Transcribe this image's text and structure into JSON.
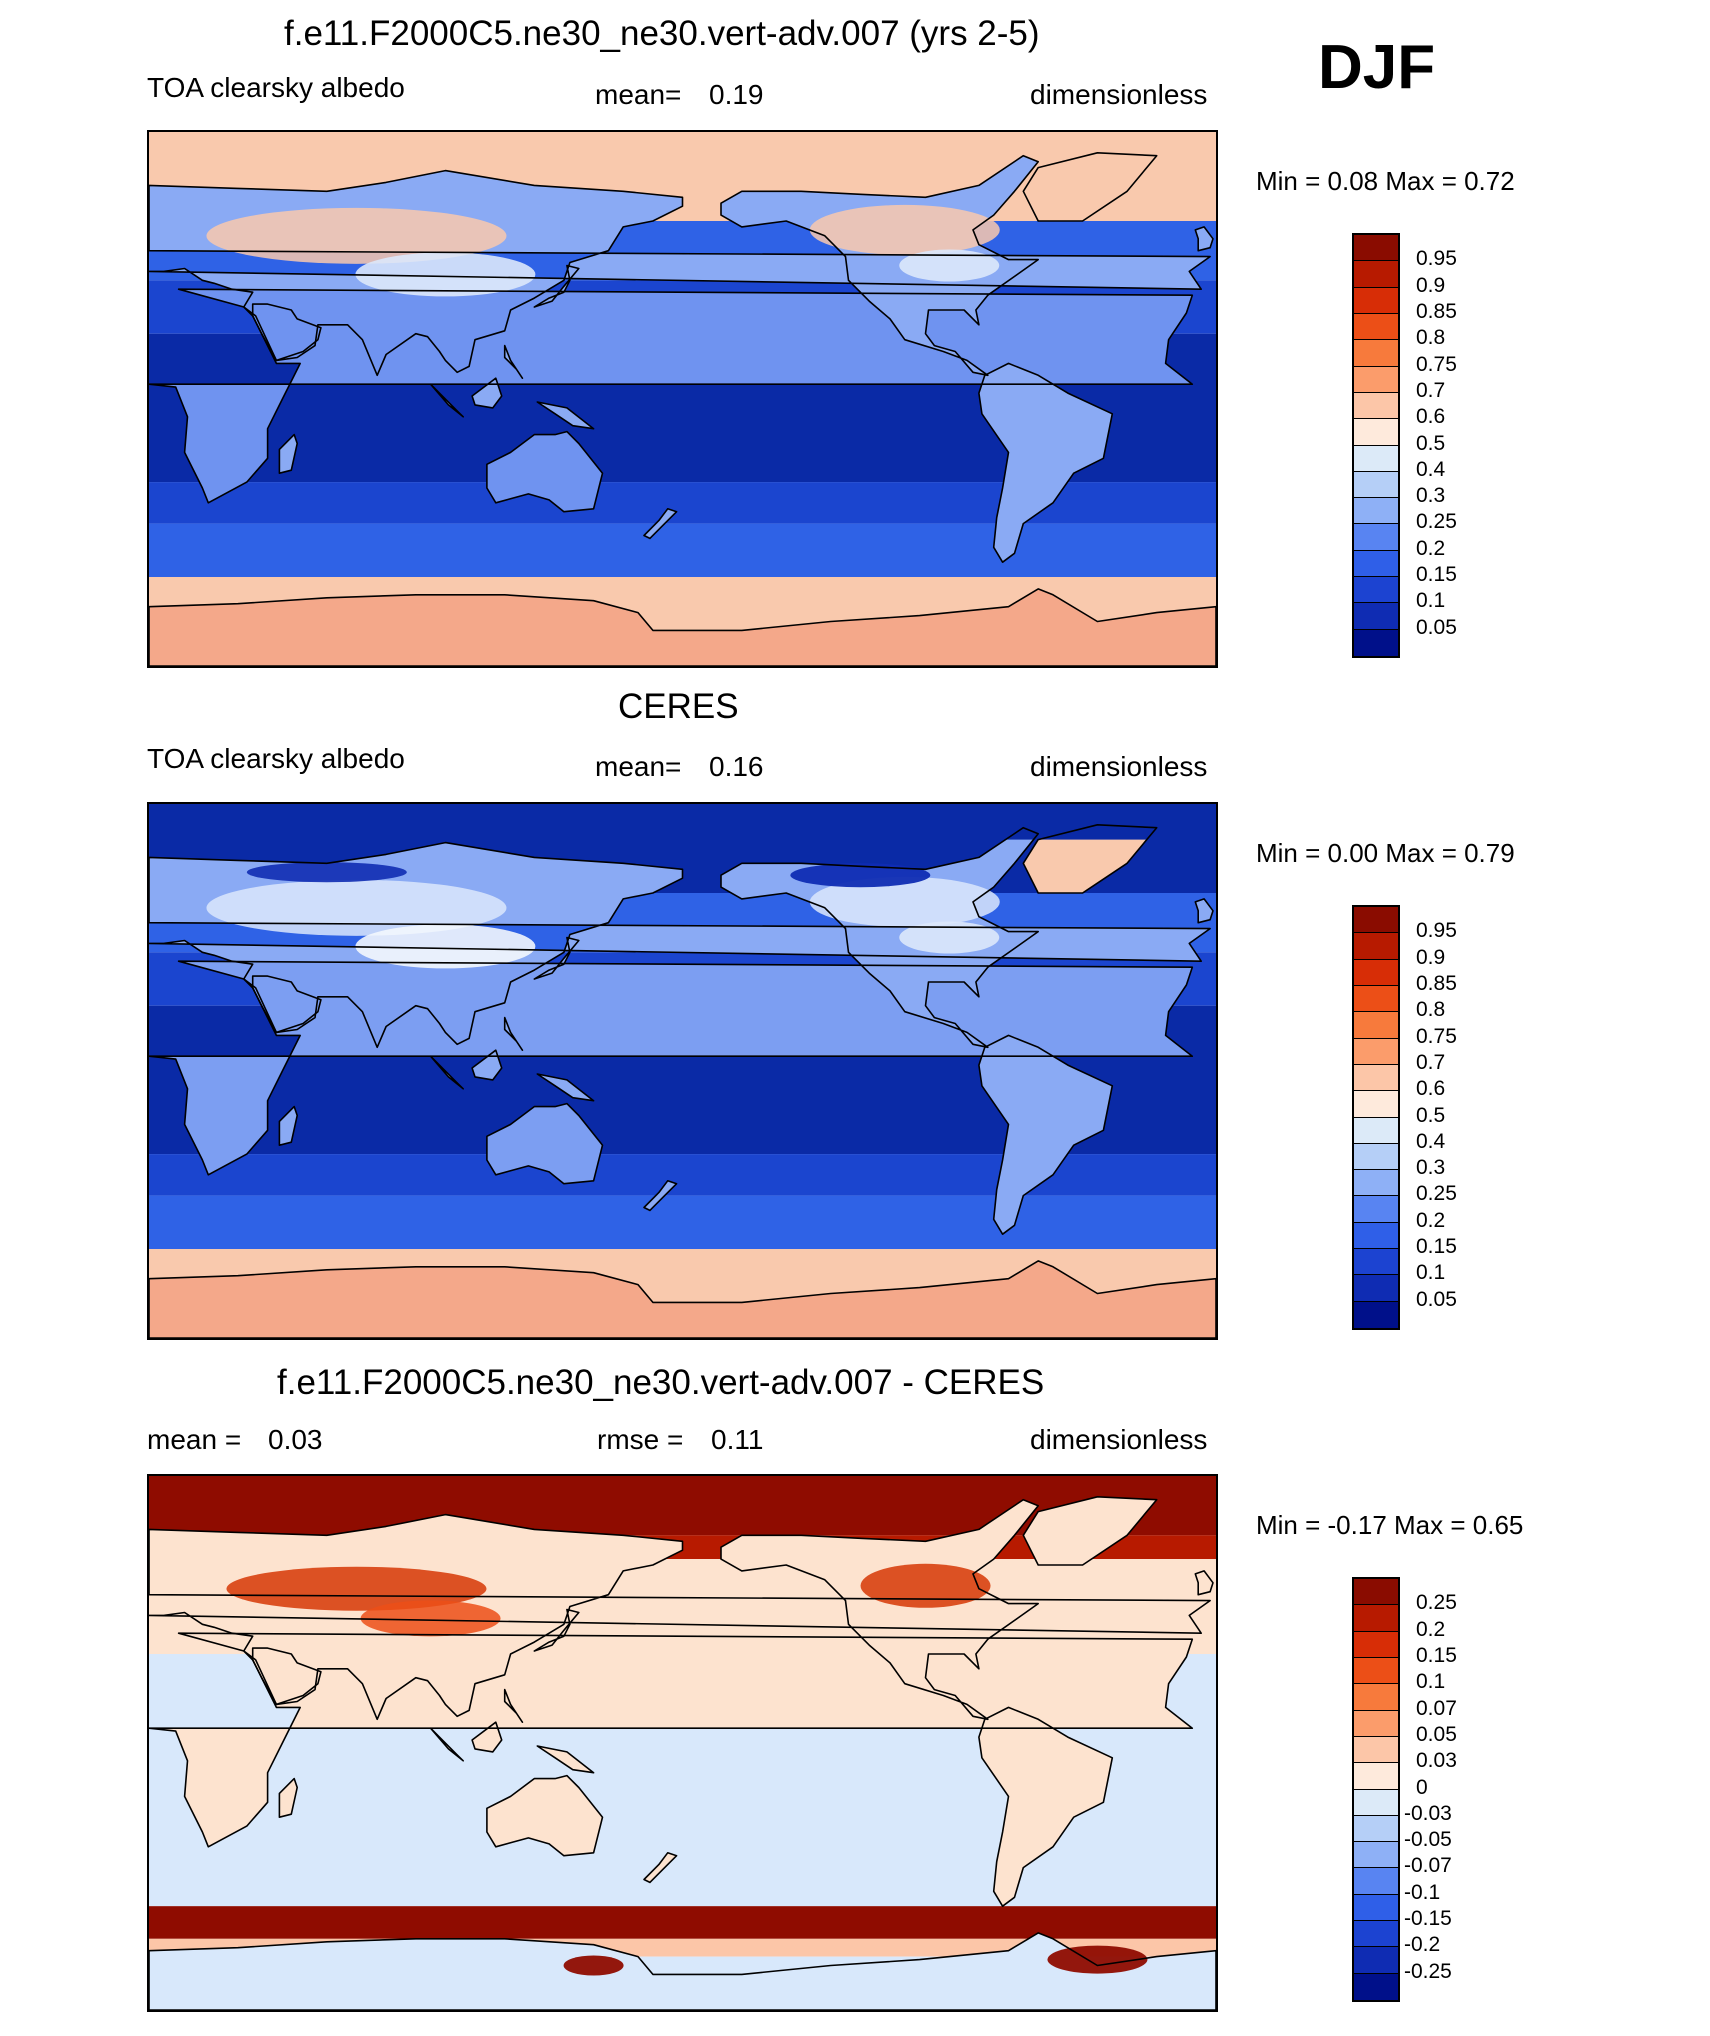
{
  "season": "DJF",
  "colors": {
    "ocean_deep": "#0a2aa6",
    "ocean_mid": "#1b45cf",
    "ocean_light": "#2f62e6",
    "land_light": "#8aaaf4",
    "snow": "#dbe8fb",
    "ice": "#f9c9ad",
    "ice_dark": "#f4a88a",
    "diff_pos_strong": "#8f0c00",
    "diff_pos": "#d8400f",
    "diff_neutral_pos": "#fde3cf",
    "diff_neutral_neg": "#d8e8fb",
    "outline": "#000000"
  },
  "panels": [
    {
      "title": "f.e11.F2000C5.ne30_ne30.vert-adv.007 (yrs 2-5)",
      "left_label": "TOA clearsky albedo",
      "mean_label": "mean=",
      "mean_value": "0.19",
      "units": "dimensionless",
      "minmax": "Min =   0.08 Max =   0.72",
      "kind": "model"
    },
    {
      "title": "CERES",
      "left_label": "TOA clearsky albedo",
      "mean_label": "mean=",
      "mean_value": "0.16",
      "units": "dimensionless",
      "minmax": "Min =   0.00 Max =   0.79",
      "kind": "obs"
    },
    {
      "title": "f.e11.F2000C5.ne30_ne30.vert-adv.007 - CERES",
      "left_label": "mean =",
      "left_value": "0.03",
      "mean_label": "rmse =",
      "mean_value": "0.11",
      "units": "dimensionless",
      "minmax": "Min =  -0.17 Max =   0.65",
      "kind": "diff"
    }
  ],
  "colorbars": [
    {
      "labels": [
        "0.95",
        "0.9",
        "0.85",
        "0.8",
        "0.75",
        "0.7",
        "0.6",
        "0.5",
        "0.4",
        "0.3",
        "0.25",
        "0.2",
        "0.15",
        "0.1",
        "0.05"
      ],
      "colors": [
        "#8a0c00",
        "#b71a00",
        "#d72d06",
        "#ec4f17",
        "#f77a3c",
        "#fb9c6b",
        "#fcc6a8",
        "#feeadc",
        "#dceaf8",
        "#b5cff7",
        "#8eb0f6",
        "#5884f2",
        "#2f5fe8",
        "#1c43d1",
        "#0f2cb3",
        "#00108a"
      ]
    },
    {
      "labels": [
        "0.95",
        "0.9",
        "0.85",
        "0.8",
        "0.75",
        "0.7",
        "0.6",
        "0.5",
        "0.4",
        "0.3",
        "0.25",
        "0.2",
        "0.15",
        "0.1",
        "0.05"
      ],
      "colors": [
        "#8a0c00",
        "#b71a00",
        "#d72d06",
        "#ec4f17",
        "#f77a3c",
        "#fb9c6b",
        "#fcc6a8",
        "#feeadc",
        "#dceaf8",
        "#b5cff7",
        "#8eb0f6",
        "#5884f2",
        "#2f5fe8",
        "#1c43d1",
        "#0f2cb3",
        "#00108a"
      ]
    },
    {
      "labels": [
        "0.25",
        "0.2",
        "0.15",
        "0.1",
        "0.07",
        "0.05",
        "0.03",
        "0",
        "-0.03",
        "-0.05",
        "-0.07",
        "-0.1",
        "-0.15",
        "-0.2",
        "-0.25"
      ],
      "colors": [
        "#8a0c00",
        "#b71a00",
        "#d72d06",
        "#ec4f17",
        "#f77a3c",
        "#fb9c6b",
        "#fcc6a8",
        "#feeadc",
        "#dceaf8",
        "#b5cff7",
        "#8eb0f6",
        "#5884f2",
        "#2f5fe8",
        "#1c43d1",
        "#0f2cb3",
        "#00108a"
      ]
    }
  ]
}
